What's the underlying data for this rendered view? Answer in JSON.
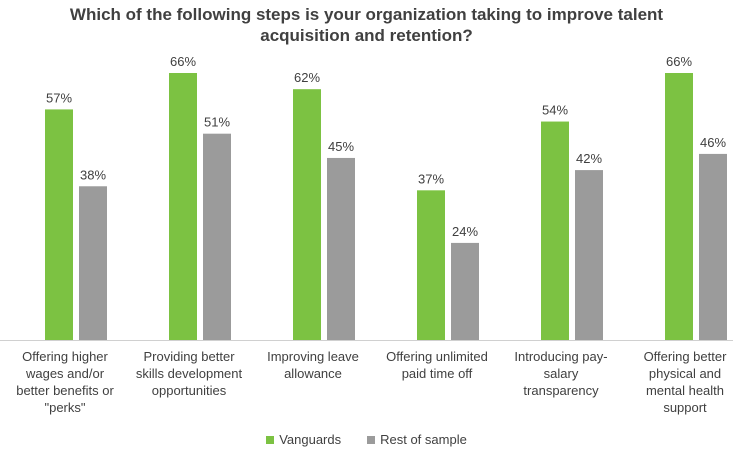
{
  "chart_data": {
    "type": "bar",
    "title_lines": [
      "Which of the following steps is your organization taking to improve talent",
      "acquisition and retention?"
    ],
    "categories": [
      [
        "Offering higher",
        "wages and/or",
        "better benefits or",
        "\"perks\""
      ],
      [
        "Providing better",
        "skills development",
        "opportunities"
      ],
      [
        "Improving leave",
        "allowance"
      ],
      [
        "Offering unlimited",
        "paid time off"
      ],
      [
        "Introducing pay-",
        "salary",
        "transparency"
      ],
      [
        "Offering better",
        "physical and",
        "mental health",
        "support"
      ]
    ],
    "series": [
      {
        "name": "Vanguards",
        "color": "#7CC242",
        "values": [
          57,
          66,
          62,
          37,
          54,
          66
        ]
      },
      {
        "name": "Rest of sample",
        "color": "#9B9B9B",
        "values": [
          38,
          51,
          45,
          24,
          42,
          46
        ]
      }
    ],
    "value_suffix": "%",
    "ylim": [
      0,
      66
    ],
    "grid": false,
    "legend_position": "bottom"
  }
}
